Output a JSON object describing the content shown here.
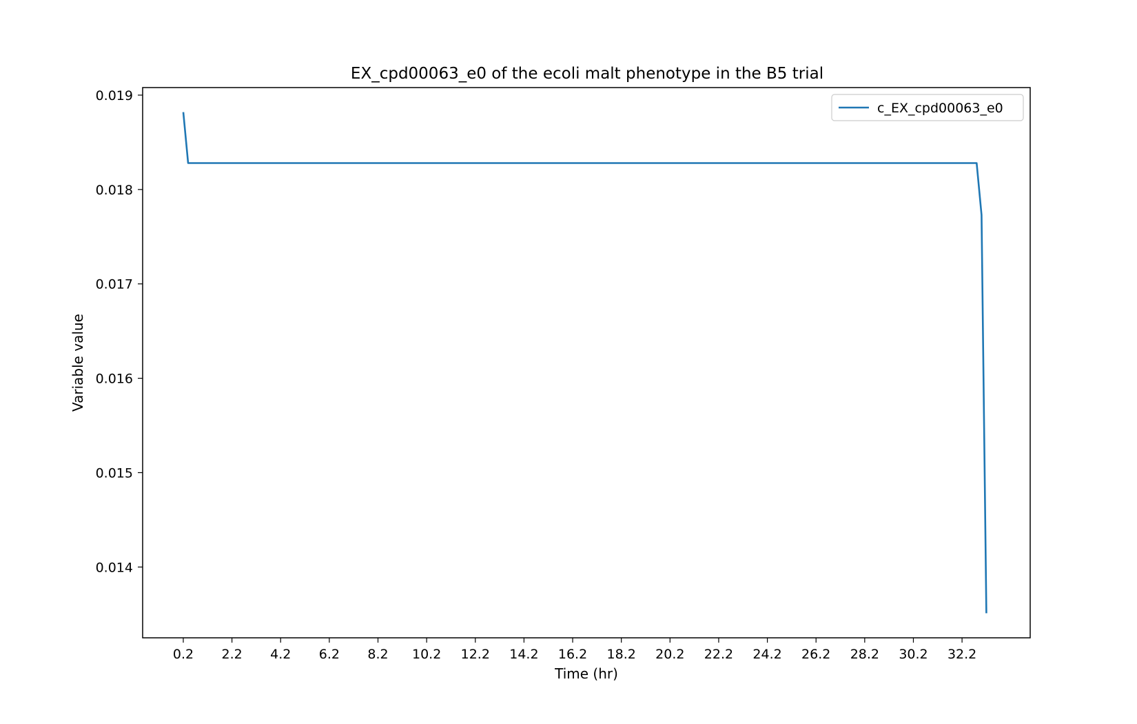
{
  "chart_data": {
    "type": "line",
    "title": "EX_cpd00063_e0 of the ecoli malt phenotype in the B5 trial",
    "xlabel": "Time (hr)",
    "ylabel": "Variable value",
    "xlim": [
      -1.47,
      35.0
    ],
    "ylim": [
      0.01325,
      0.01908
    ],
    "x_ticks": [
      "0.2",
      "2.2",
      "4.2",
      "6.2",
      "8.2",
      "10.2",
      "12.2",
      "14.2",
      "16.2",
      "18.2",
      "20.2",
      "22.2",
      "24.2",
      "26.2",
      "28.2",
      "30.2",
      "32.2"
    ],
    "y_ticks": [
      "0.014",
      "0.015",
      "0.016",
      "0.017",
      "0.018",
      "0.019"
    ],
    "grid": false,
    "legend_position": "upper-right",
    "series": [
      {
        "name": "c_EX_cpd00063_e0",
        "color": "#1f77b4",
        "points": [
          [
            0.2,
            0.01882
          ],
          [
            0.4,
            0.01828
          ],
          [
            32.8,
            0.01828
          ],
          [
            33.0,
            0.01773
          ],
          [
            33.2,
            0.01351
          ]
        ]
      }
    ]
  }
}
